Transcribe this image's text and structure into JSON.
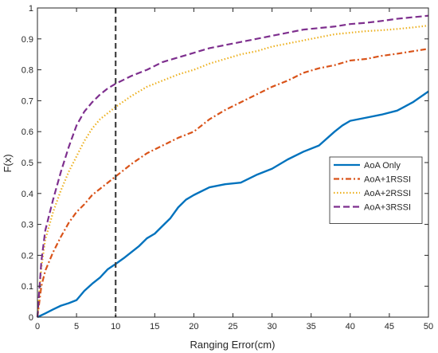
{
  "chart_data": {
    "type": "line",
    "title": "",
    "xlabel": "Ranging Error(cm)",
    "ylabel": "F(x)",
    "xlim": [
      0,
      50
    ],
    "ylim": [
      0,
      1
    ],
    "xticks": [
      0,
      5,
      10,
      15,
      20,
      25,
      30,
      35,
      40,
      45,
      50
    ],
    "yticks": [
      0,
      0.1,
      0.2,
      0.3,
      0.4,
      0.5,
      0.6,
      0.7,
      0.8,
      0.9,
      1
    ],
    "xtick_labels": [
      "0",
      "5",
      "10",
      "15",
      "20",
      "25",
      "30",
      "35",
      "40",
      "45",
      "50"
    ],
    "ytick_labels": [
      "0",
      "0.1",
      "0.2",
      "0.3",
      "0.4",
      "0.5",
      "0.6",
      "0.7",
      "0.8",
      "0.9",
      "1"
    ],
    "grid": false,
    "legend_position": "right",
    "vline": {
      "x": 10,
      "color": "#404040",
      "style": "dashed"
    },
    "series": [
      {
        "name": "AoA Only",
        "color": "#0072BD",
        "style": "solid",
        "x": [
          0,
          1,
          2,
          3,
          4,
          5,
          6,
          7,
          8,
          9,
          10,
          11,
          12,
          13,
          14,
          15,
          16,
          17,
          18,
          19,
          20,
          22,
          24,
          26,
          28,
          30,
          32,
          34,
          36,
          38,
          39,
          40,
          42,
          44,
          46,
          48,
          50
        ],
        "y": [
          0,
          0.012,
          0.025,
          0.037,
          0.045,
          0.055,
          0.085,
          0.108,
          0.128,
          0.155,
          0.172,
          0.19,
          0.21,
          0.23,
          0.255,
          0.27,
          0.295,
          0.32,
          0.355,
          0.38,
          0.395,
          0.42,
          0.43,
          0.435,
          0.46,
          0.48,
          0.51,
          0.535,
          0.555,
          0.6,
          0.62,
          0.635,
          0.645,
          0.655,
          0.668,
          0.695,
          0.73
        ]
      },
      {
        "name": "AoA+1RSSI",
        "color": "#D95319",
        "style": "dashdot",
        "x": [
          0,
          0.5,
          1,
          2,
          3,
          4,
          5,
          6,
          7,
          8,
          9,
          10,
          12,
          14,
          16,
          18,
          20,
          22,
          24,
          26,
          28,
          30,
          32,
          34,
          36,
          38,
          40,
          42,
          44,
          46,
          48,
          50
        ],
        "y": [
          0,
          0.1,
          0.15,
          0.21,
          0.26,
          0.305,
          0.34,
          0.365,
          0.395,
          0.415,
          0.435,
          0.455,
          0.495,
          0.53,
          0.555,
          0.58,
          0.6,
          0.64,
          0.67,
          0.695,
          0.72,
          0.745,
          0.765,
          0.79,
          0.805,
          0.815,
          0.83,
          0.835,
          0.845,
          0.852,
          0.86,
          0.868
        ]
      },
      {
        "name": "AoA+2RSSI",
        "color": "#EDB120",
        "style": "dotted",
        "x": [
          0,
          0.5,
          1,
          2,
          3,
          4,
          5,
          6,
          7,
          8,
          9,
          10,
          12,
          14,
          16,
          18,
          20,
          22,
          24,
          26,
          28,
          30,
          32,
          34,
          36,
          38,
          40,
          42,
          44,
          46,
          48,
          50
        ],
        "y": [
          0,
          0.16,
          0.25,
          0.34,
          0.41,
          0.47,
          0.52,
          0.57,
          0.61,
          0.64,
          0.66,
          0.68,
          0.715,
          0.745,
          0.765,
          0.785,
          0.8,
          0.82,
          0.835,
          0.85,
          0.86,
          0.875,
          0.885,
          0.895,
          0.905,
          0.915,
          0.92,
          0.925,
          0.928,
          0.932,
          0.937,
          0.943
        ]
      },
      {
        "name": "AoA+3RSSI",
        "color": "#7E2F8E",
        "style": "dashed",
        "x": [
          0,
          0.5,
          1,
          2,
          3,
          4,
          5,
          6,
          7,
          8,
          9,
          10,
          12,
          14,
          16,
          18,
          20,
          22,
          24,
          26,
          28,
          30,
          32,
          34,
          36,
          38,
          40,
          42,
          44,
          46,
          48,
          50
        ],
        "y": [
          0,
          0.18,
          0.28,
          0.38,
          0.47,
          0.55,
          0.62,
          0.665,
          0.695,
          0.72,
          0.74,
          0.755,
          0.78,
          0.8,
          0.825,
          0.84,
          0.855,
          0.87,
          0.88,
          0.89,
          0.9,
          0.91,
          0.92,
          0.93,
          0.935,
          0.94,
          0.948,
          0.952,
          0.958,
          0.965,
          0.97,
          0.975
        ]
      }
    ]
  }
}
